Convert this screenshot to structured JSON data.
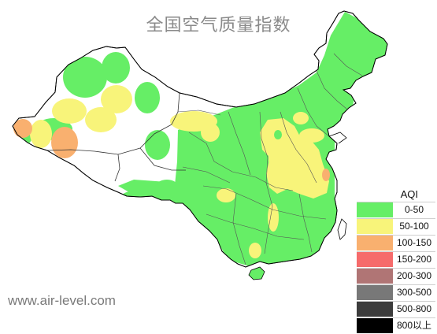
{
  "title": "全国空气质量指数",
  "watermark": "www.air-level.com",
  "legend": {
    "title": "AQI",
    "items": [
      {
        "label": "0-50",
        "color": "#66ee66"
      },
      {
        "label": "50-100",
        "color": "#f8f47a"
      },
      {
        "label": "100-150",
        "color": "#f9b06f"
      },
      {
        "label": "150-200",
        "color": "#f66b6b"
      },
      {
        "label": "200-300",
        "color": "#b07575"
      },
      {
        "label": "300-500",
        "color": "#787878"
      },
      {
        "label": "500-800",
        "color": "#3c3c3c"
      },
      {
        "label": "800以上",
        "color": "#000000"
      }
    ]
  }
}
